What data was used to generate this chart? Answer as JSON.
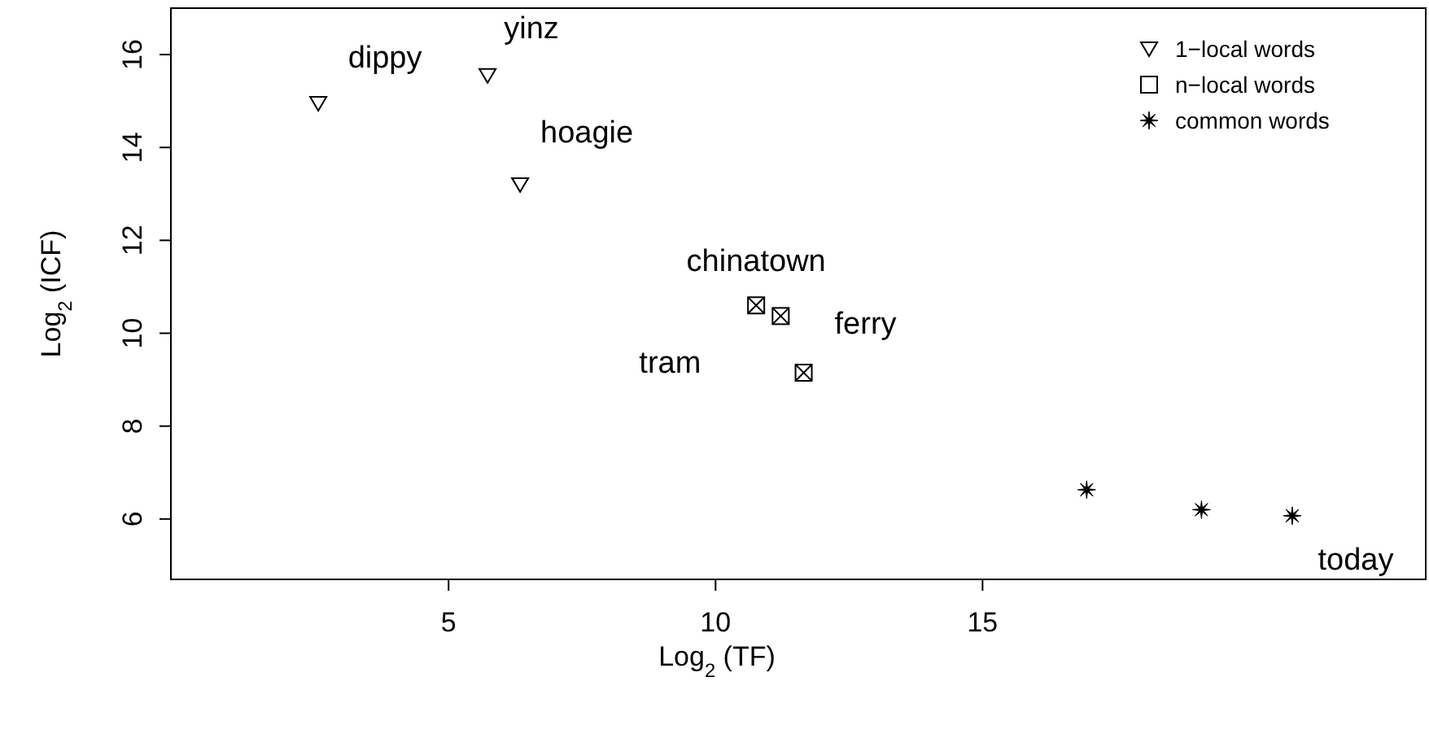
{
  "chart_data": {
    "type": "scatter",
    "xlabel": "Log$_{2}$ (TF)",
    "ylabel": "Log$_{2}$ (ICF)",
    "xlim": [
      -0.2,
      23.3
    ],
    "ylim": [
      4.7,
      17
    ],
    "xticks": [
      5,
      10,
      15
    ],
    "yticks": [
      6,
      8,
      10,
      12,
      14,
      16
    ],
    "legend": "top right",
    "grid": false,
    "series": [
      {
        "name": "1−local words",
        "color": "#000000",
        "marker": "triangle",
        "x": [
          2.56,
          5.73,
          6.34
        ],
        "values": [
          14.95,
          15.55,
          13.2
        ]
      },
      {
        "name": "n−local words",
        "color": "#000000",
        "marker": "square",
        "x": [
          10.76,
          11.22,
          11.65
        ],
        "values": [
          10.6,
          10.37,
          9.15
        ]
      },
      {
        "name": "common words",
        "color": "#000000",
        "marker": "star",
        "x": [
          16.95,
          19.1,
          20.8
        ],
        "values": [
          6.63,
          6.2,
          6.07
        ]
      }
    ],
    "annotations": [
      {
        "text": "dippy",
        "x": 2.56,
        "y": 14.95
      },
      {
        "text": "yinz",
        "x": 5.73,
        "y": 15.55
      },
      {
        "text": "hoagie",
        "x": 6.34,
        "y": 13.2
      },
      {
        "text": "chinatown",
        "x": 10.76,
        "y": 10.6
      },
      {
        "text": "tram",
        "x": 11.22,
        "y": 10.37
      },
      {
        "text": "ferry",
        "x": 11.65,
        "y": 9.15
      },
      {
        "text": "today",
        "x": 20.8,
        "y": 6.07
      }
    ]
  }
}
